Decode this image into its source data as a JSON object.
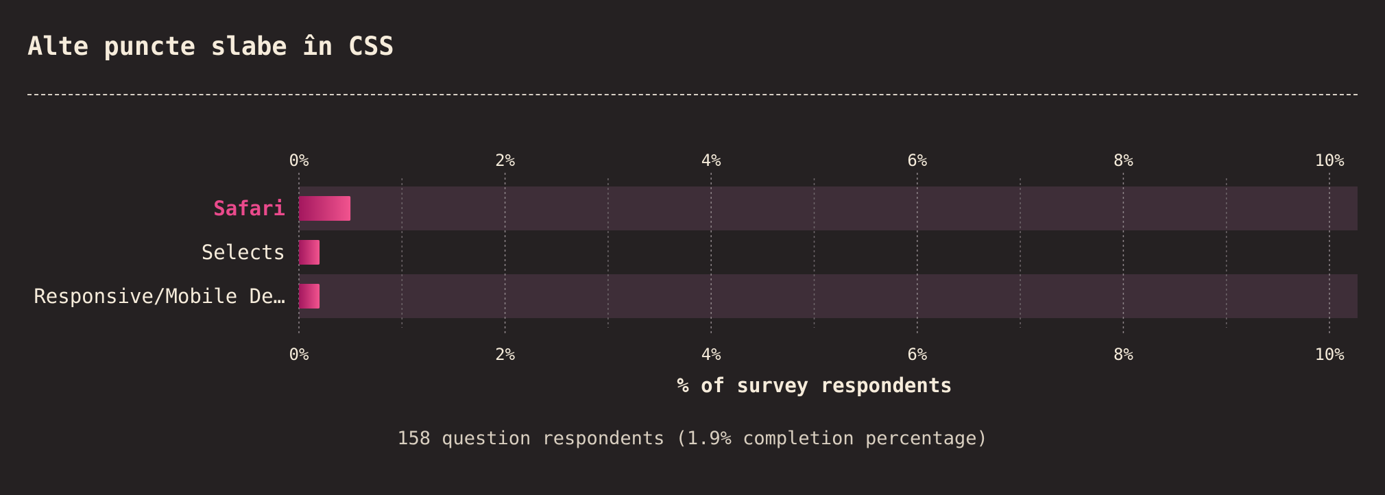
{
  "title": "Alte puncte slabe în CSS",
  "footnote": "158 question respondents (1.9% completion percentage)",
  "colors": {
    "background": "#252122",
    "text": "#f6ecdb",
    "highlight": "#ea4a8c",
    "bar_start": "#a3175e",
    "bar_end": "#f2548f",
    "row_band": "#3e2e38"
  },
  "chart_data": {
    "type": "bar",
    "orientation": "horizontal",
    "categories": [
      "Safari",
      "Selects",
      "Responsive/Mobile De…"
    ],
    "highlighted_category": "Safari",
    "values": [
      0.5,
      0.2,
      0.2
    ],
    "xlabel": "% of survey respondents",
    "ylabel": "",
    "xlim": [
      0,
      10
    ],
    "x_ticks": [
      0,
      2,
      4,
      6,
      8,
      10
    ],
    "x_tick_labels": [
      "0%",
      "2%",
      "4%",
      "6%",
      "8%",
      "10%"
    ],
    "grid": true,
    "axis_labels_top_and_bottom": true
  }
}
